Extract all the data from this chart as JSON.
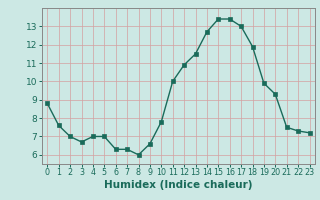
{
  "x": [
    0,
    1,
    2,
    3,
    4,
    5,
    6,
    7,
    8,
    9,
    10,
    11,
    12,
    13,
    14,
    15,
    16,
    17,
    18,
    19,
    20,
    21,
    22,
    23
  ],
  "y": [
    8.8,
    7.6,
    7.0,
    6.7,
    7.0,
    7.0,
    6.3,
    6.3,
    6.0,
    6.6,
    7.8,
    10.0,
    10.9,
    11.5,
    12.7,
    13.4,
    13.4,
    13.0,
    11.9,
    9.9,
    9.3,
    7.5,
    7.3,
    7.2
  ],
  "xlabel": "Humidex (Indice chaleur)",
  "ylim": [
    5.5,
    14.0
  ],
  "xlim": [
    -0.5,
    23.5
  ],
  "yticks": [
    6,
    7,
    8,
    9,
    10,
    11,
    12,
    13
  ],
  "xticks": [
    0,
    1,
    2,
    3,
    4,
    5,
    6,
    7,
    8,
    9,
    10,
    11,
    12,
    13,
    14,
    15,
    16,
    17,
    18,
    19,
    20,
    21,
    22,
    23
  ],
  "line_color": "#1a6b5a",
  "marker_color": "#1a6b5a",
  "bg_color": "#cce8e4",
  "grid_color_v": "#d4a0a0",
  "grid_color_h": "#d4a0a0",
  "axis_bg": "#cce8e4",
  "tick_color": "#1a6b5a",
  "xlabel_fontsize": 7.5,
  "ytick_fontsize": 6.5,
  "xtick_fontsize": 5.8
}
